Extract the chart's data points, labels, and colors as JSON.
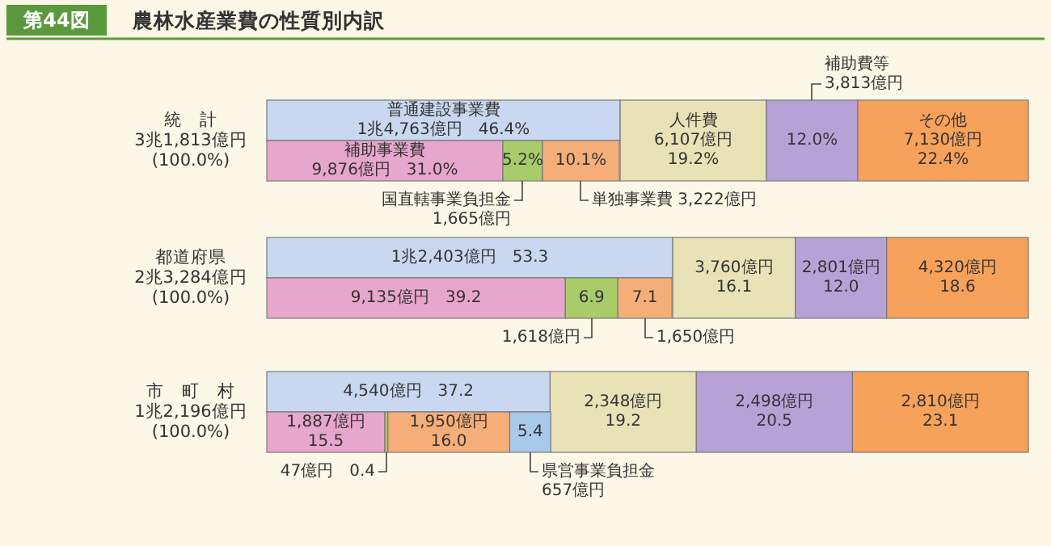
{
  "chart_data": [
    {
      "type": "bar",
      "orientation": "horizontal",
      "stacked": true,
      "subtitle": "第44図",
      "title": "農林水産業費の性質別内訳",
      "categories": [
        "統　計\n3兆1,813億円\n(100.0%)",
        "都道府県\n2兆3,284億円\n(100.0%)",
        "市　町　村\n1兆2,196億円\n(100.0%)"
      ],
      "series": [
        {
          "color": "#c9d8f0",
          "values": [
            46.4,
            53.3,
            37.2
          ],
          "value_labels": [
            "普通建設事業費\n1兆4,763億円　46.4%",
            "1兆2,403億円　53.3",
            "4,540億円　37.2"
          ]
        },
        {
          "color": "#e9e2b6",
          "values": [
            19.2,
            16.1,
            19.2
          ],
          "value_labels": [
            "人件費\n6,107億円\n19.2%",
            "3,760億円\n16.1",
            "2,348億円\n19.2"
          ]
        },
        {
          "color": "#b7a2d8",
          "values": [
            12.0,
            12.0,
            20.5
          ],
          "value_labels": [
            "12.0%",
            "2,801億円\n12.0",
            "2,498億円\n20.5"
          ]
        },
        {
          "color": "#f6a25a",
          "values": [
            22.4,
            18.6,
            23.1
          ],
          "value_labels": [
            "その他\n7,130億円\n22.4%",
            "4,320億円\n18.6",
            "2,810億円\n23.1"
          ]
        }
      ],
      "annotations": [
        "補助費等\n3,813億円"
      ]
    },
    {
      "type": "bar",
      "orientation": "horizontal",
      "stacked": true,
      "categories": [
        null,
        null,
        null
      ],
      "series": [
        {
          "color": "#e7a6cc",
          "values": [
            31.0,
            39.2,
            15.5
          ],
          "value_labels": [
            "補助事業費\n9,876億円　31.0%",
            "9,135億円　39.2",
            "1,887億円\n15.5"
          ]
        },
        {
          "color": "#a9cc6a",
          "values": [
            5.2,
            6.9,
            0.4
          ],
          "value_labels": [
            "5.2%",
            "6.9",
            null
          ]
        },
        {
          "color": "#f6ae78",
          "values": [
            10.1,
            7.1,
            16.0
          ],
          "value_labels": [
            "10.1%",
            "7.1",
            "1,950億円\n16.0"
          ]
        },
        {
          "color": "#a9c9ea",
          "values": [
            null,
            null,
            5.4
          ],
          "value_labels": [
            null,
            null,
            "5.4"
          ]
        }
      ],
      "annotations": [
        "国直轄事業負担金\n1,665億円",
        "単独事業費 3,222億円",
        "1,618億円",
        "1,650億円",
        "47億円　0.4",
        "県営事業負担金\n657億円"
      ]
    }
  ]
}
